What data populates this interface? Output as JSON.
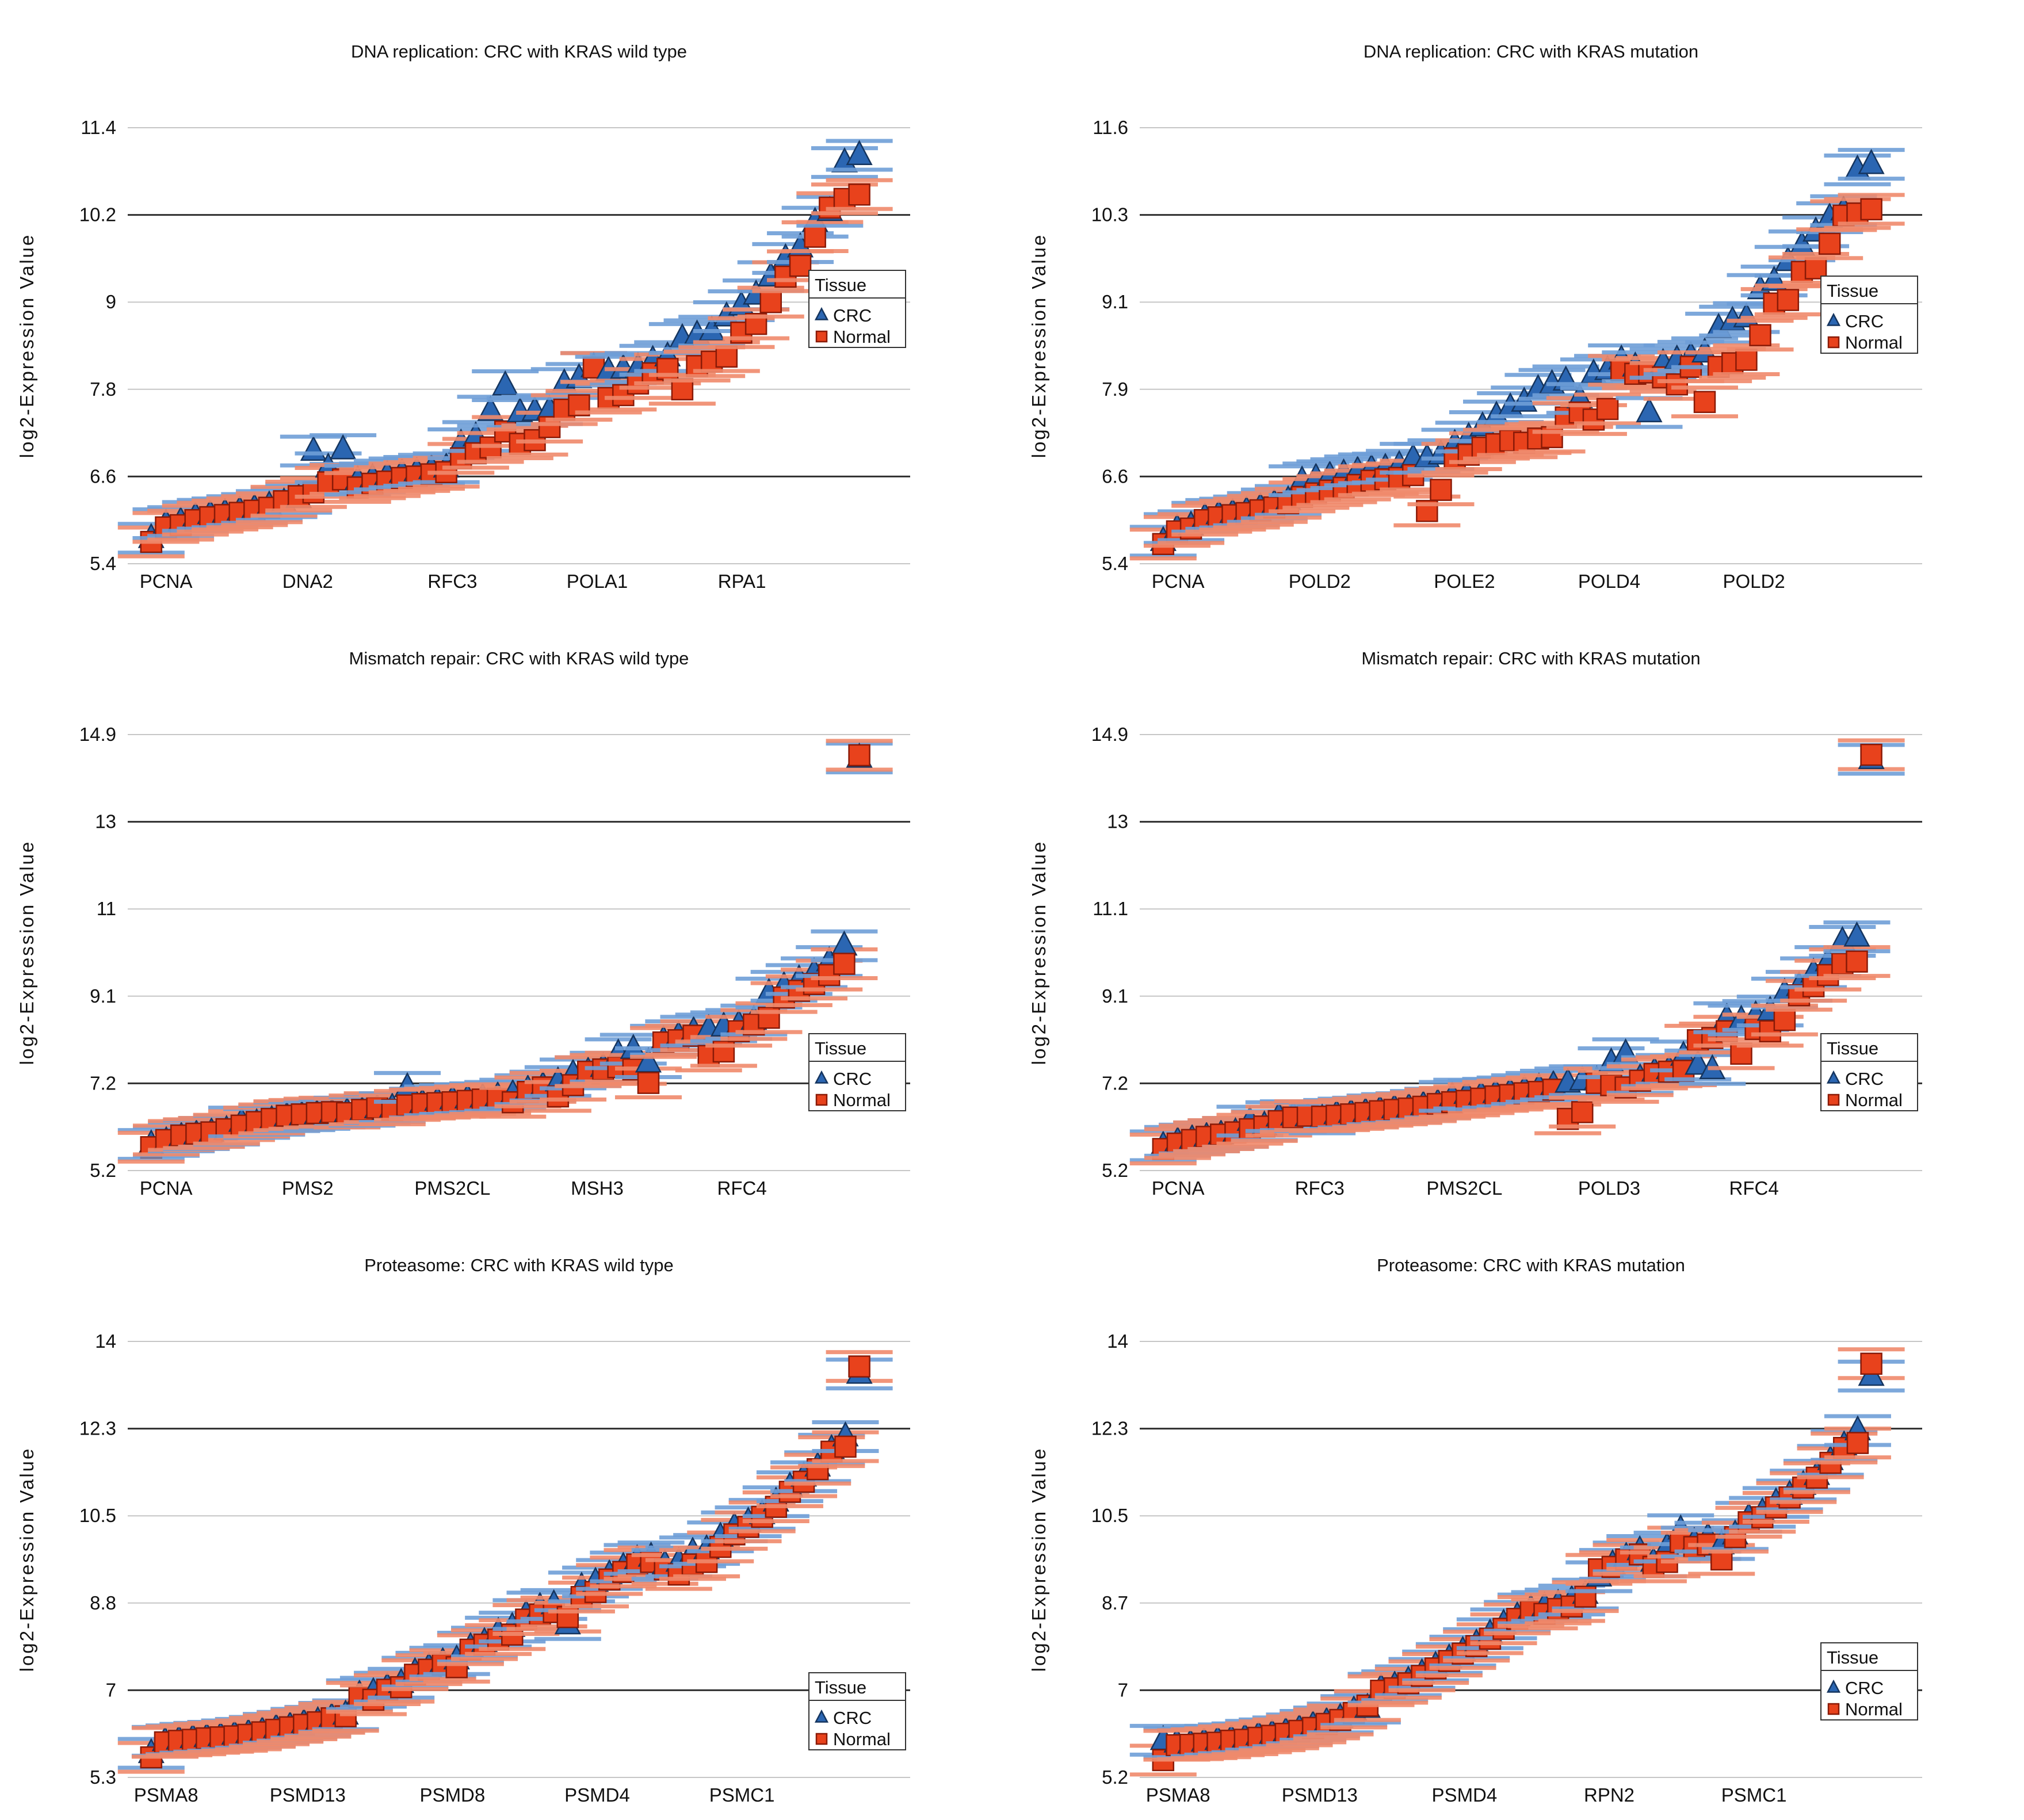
{
  "figure": {
    "description": "Six scatter panels comparing log2 expression of genes between CRC and Normal tissue",
    "legend": {
      "title": "Tissue",
      "entries": [
        {
          "label": "CRC",
          "marker": "triangle"
        },
        {
          "label": "Normal",
          "marker": "square"
        }
      ]
    }
  },
  "colors": {
    "crc_fill": "#2B66B2",
    "crc_edge": "#15355F",
    "crc_errbar": "#6F9FD8",
    "normal_fill": "#E8421C",
    "normal_edge": "#8A1A07",
    "normal_errbar": "#F08A6C",
    "grid_light": "#C6C6C6",
    "grid_dark": "#2F2F2F",
    "text": "#111111",
    "legend_border": "#333333",
    "background": "#FFFFFF"
  },
  "chart_data": [
    {
      "type": "scatter",
      "title": "DNA replication: CRC with KRAS wild type",
      "ylabel": "log2-Expression Value",
      "ytick_labels": [
        "11.4",
        "10.2",
        "9",
        "7.8",
        "6.6",
        "5.4"
      ],
      "dark_tick_indices": [
        1,
        4
      ],
      "ylim": [
        5.4,
        11.4
      ],
      "xlabels": [
        "PCNA",
        "DNA2",
        "RFC3",
        "POLA1",
        "RPA1"
      ],
      "series": [
        {
          "name": "CRC",
          "marker": "triangle",
          "values": [
            5.75,
            5.95,
            5.98,
            6.05,
            6.08,
            6.1,
            6.13,
            6.16,
            6.2,
            6.24,
            6.3,
            6.95,
            6.72,
            6.97,
            6.55,
            6.58,
            6.62,
            6.65,
            6.67,
            6.7,
            6.72,
            7.05,
            7.15,
            7.5,
            7.85,
            7.48,
            7.5,
            7.52,
            7.88,
            7.95,
            8.1,
            8.05,
            8.08,
            8.1,
            8.2,
            8.25,
            8.5,
            8.55,
            8.6,
            8.8,
            8.95,
            9.1,
            9.35,
            9.6,
            9.75,
            10.1,
            10.25,
            10.92,
            11.02
          ]
        },
        {
          "name": "Normal",
          "marker": "square",
          "values": [
            5.7,
            5.9,
            5.93,
            6.0,
            6.04,
            6.07,
            6.1,
            6.13,
            6.17,
            6.26,
            6.33,
            6.38,
            6.52,
            6.56,
            6.45,
            6.5,
            6.53,
            6.58,
            6.6,
            6.63,
            6.66,
            6.85,
            6.92,
            7.0,
            7.22,
            7.05,
            7.1,
            7.28,
            7.52,
            7.58,
            8.1,
            7.68,
            7.72,
            7.88,
            8.02,
            8.08,
            7.8,
            8.12,
            8.18,
            8.25,
            8.58,
            8.7,
            9.0,
            9.35,
            9.5,
            9.9,
            10.3,
            10.42,
            10.48
          ]
        }
      ]
    },
    {
      "type": "scatter",
      "title": "DNA replication: CRC with KRAS mutation",
      "ylabel": "log2-Expression Value",
      "ytick_labels": [
        "11.6",
        "10.3",
        "9.1",
        "7.9",
        "6.6",
        "5.4"
      ],
      "dark_tick_indices": [
        1,
        4
      ],
      "ylim": [
        5.4,
        11.6
      ],
      "xlabels": [
        "PCNA",
        "POLD2",
        "POLE2",
        "POLD4",
        "POLD2"
      ],
      "series": [
        {
          "name": "CRC",
          "marker": "triangle",
          "values": [
            5.72,
            5.9,
            5.94,
            6.06,
            6.1,
            6.12,
            6.15,
            6.2,
            6.25,
            6.3,
            6.58,
            6.62,
            6.65,
            6.68,
            6.72,
            6.75,
            6.76,
            6.8,
            6.9,
            6.9,
            6.95,
            7.1,
            7.2,
            7.35,
            7.5,
            7.62,
            7.7,
            7.88,
            7.95,
            8.0,
            7.75,
            8.1,
            8.15,
            8.3,
            8.2,
            7.55,
            8.25,
            8.3,
            8.35,
            8.4,
            8.75,
            8.85,
            8.9,
            9.3,
            9.42,
            9.7,
            9.92,
            10.12,
            10.32,
            10.42,
            11.0,
            11.08
          ]
        },
        {
          "name": "Normal",
          "marker": "square",
          "values": [
            5.68,
            5.86,
            5.9,
            6.02,
            6.06,
            6.09,
            6.12,
            6.16,
            6.2,
            6.26,
            6.35,
            6.4,
            6.44,
            6.48,
            6.52,
            6.58,
            6.6,
            6.62,
            6.66,
            6.15,
            6.45,
            6.9,
            6.95,
            7.05,
            7.1,
            7.15,
            7.12,
            7.18,
            7.2,
            7.48,
            7.55,
            7.45,
            7.6,
            8.15,
            8.1,
            8.12,
            8.05,
            7.95,
            8.2,
            7.7,
            8.2,
            8.25,
            8.3,
            8.65,
            9.1,
            9.15,
            9.55,
            9.6,
            9.95,
            10.35,
            10.38,
            10.44
          ]
        }
      ]
    },
    {
      "type": "scatter",
      "title": "Mismatch repair: CRC with KRAS wild type",
      "ylabel": "log2-Expression Value",
      "ytick_labels": [
        "14.9",
        "13",
        "11",
        "9.1",
        "7.2",
        "5.2"
      ],
      "dark_tick_indices": [
        1,
        4
      ],
      "ylim": [
        5.2,
        14.9
      ],
      "xlabels": [
        "PCNA",
        "PMS2",
        "PMS2CL",
        "MSH3",
        "RFC4"
      ],
      "series": [
        {
          "name": "CRC",
          "marker": "triangle",
          "values": [
            5.78,
            5.85,
            5.95,
            6.0,
            6.05,
            6.1,
            6.28,
            6.25,
            6.32,
            6.4,
            6.42,
            6.45,
            6.48,
            6.5,
            6.52,
            6.58,
            6.6,
            7.05,
            6.7,
            6.75,
            6.78,
            6.8,
            6.82,
            6.85,
            6.9,
            7.0,
            7.08,
            7.18,
            7.35,
            7.4,
            7.5,
            7.8,
            7.9,
            7.6,
            8.1,
            8.2,
            8.3,
            8.35,
            8.4,
            8.45,
            8.55,
            9.15,
            9.3,
            9.45,
            9.6,
            9.85,
            10.2,
            14.38
          ]
        },
        {
          "name": "Normal",
          "marker": "square",
          "values": [
            5.72,
            5.88,
            5.98,
            6.02,
            6.05,
            6.12,
            6.2,
            6.28,
            6.35,
            6.42,
            6.45,
            6.48,
            6.5,
            6.48,
            6.55,
            6.6,
            6.55,
            6.65,
            6.68,
            6.7,
            6.72,
            6.75,
            6.78,
            6.8,
            6.72,
            6.95,
            7.05,
            6.85,
            7.1,
            7.4,
            7.45,
            7.5,
            7.45,
            7.15,
            8.05,
            8.1,
            8.2,
            7.75,
            7.85,
            8.3,
            8.45,
            8.6,
            9.05,
            9.2,
            9.35,
            9.55,
            9.8,
            14.44
          ]
        }
      ]
    },
    {
      "type": "scatter",
      "title": "Mismatch repair: CRC with KRAS mutation",
      "ylabel": "log2-Expression Value",
      "ytick_labels": [
        "14.9",
        "13",
        "11.1",
        "9.1",
        "7.2",
        "5.2"
      ],
      "dark_tick_indices": [
        1,
        4
      ],
      "ylim": [
        5.2,
        14.9
      ],
      "xlabels": [
        "PCNA",
        "RFC3",
        "PMS2CL",
        "POLD3",
        "RFC4"
      ],
      "series": [
        {
          "name": "CRC",
          "marker": "triangle",
          "values": [
            5.75,
            5.85,
            5.9,
            5.95,
            6.0,
            6.05,
            6.3,
            6.2,
            6.4,
            6.42,
            6.4,
            6.35,
            6.45,
            6.48,
            6.5,
            6.55,
            6.58,
            6.6,
            6.65,
            6.7,
            6.85,
            6.9,
            6.88,
            6.92,
            6.95,
            7.0,
            7.05,
            7.1,
            7.15,
            7.2,
            7.2,
            7.6,
            7.8,
            7.25,
            7.4,
            7.45,
            7.75,
            7.55,
            7.45,
            8.6,
            8.55,
            8.65,
            8.75,
            9.15,
            9.3,
            9.6,
            9.85,
            10.3,
            10.4,
            14.35
          ]
        },
        {
          "name": "Normal",
          "marker": "square",
          "values": [
            5.68,
            5.8,
            5.88,
            5.95,
            6.0,
            6.05,
            6.12,
            6.18,
            6.3,
            6.38,
            6.42,
            6.4,
            6.42,
            6.45,
            6.48,
            6.52,
            6.55,
            6.58,
            6.62,
            6.68,
            6.72,
            6.75,
            6.8,
            6.85,
            6.88,
            6.92,
            6.95,
            7.0,
            6.35,
            6.5,
            7.15,
            7.1,
            7.05,
            7.2,
            7.35,
            7.4,
            7.42,
            8.1,
            8.15,
            8.3,
            7.8,
            8.35,
            8.3,
            8.55,
            9.1,
            9.3,
            9.55,
            9.8,
            9.85,
            14.45
          ]
        }
      ]
    },
    {
      "type": "scatter",
      "title": "Proteasome: CRC with KRAS wild type",
      "ylabel": "log2-Expression Value",
      "ytick_labels": [
        "14",
        "12.3",
        "10.5",
        "8.8",
        "7",
        "5.3"
      ],
      "dark_tick_indices": [
        1,
        4
      ],
      "ylim": [
        5.3,
        14
      ],
      "xlabels": [
        "PSMA8",
        "PSMD13",
        "PSMD8",
        "PSMD4",
        "PSMC1"
      ],
      "series": [
        {
          "name": "CRC",
          "marker": "triangle",
          "values": [
            5.78,
            6.02,
            6.05,
            6.08,
            6.1,
            6.12,
            6.15,
            6.18,
            6.22,
            6.28,
            6.32,
            6.38,
            6.42,
            6.5,
            6.55,
            6.95,
            7.0,
            7.1,
            7.18,
            7.4,
            7.5,
            7.6,
            7.65,
            7.9,
            8.0,
            8.2,
            8.3,
            8.55,
            8.7,
            8.75,
            8.35,
            9.1,
            9.2,
            9.35,
            9.5,
            9.65,
            9.7,
            9.55,
            9.6,
            9.8,
            9.85,
            10.1,
            10.3,
            10.4,
            10.55,
            10.8,
            11.1,
            11.3,
            11.5,
            11.85,
            12.1,
            13.35
          ]
        },
        {
          "name": "Normal",
          "marker": "square",
          "values": [
            5.7,
            6.0,
            6.03,
            6.05,
            6.08,
            6.1,
            6.12,
            6.15,
            6.2,
            6.25,
            6.3,
            6.35,
            6.4,
            6.48,
            6.52,
            6.9,
            6.85,
            7.05,
            7.1,
            7.35,
            7.45,
            7.55,
            7.5,
            7.85,
            7.95,
            8.05,
            8.15,
            8.45,
            8.55,
            8.6,
            8.5,
            8.9,
            9.0,
            9.25,
            9.4,
            9.55,
            9.6,
            9.45,
            9.35,
            9.55,
            9.6,
            9.9,
            10.15,
            10.3,
            10.5,
            10.7,
            11.0,
            11.2,
            11.45,
            11.8,
            11.9,
            13.5
          ]
        }
      ]
    },
    {
      "type": "scatter",
      "title": "Proteasome: CRC with KRAS mutation",
      "ylabel": "log2-Expression Value",
      "ytick_labels": [
        "14",
        "12.3",
        "10.5",
        "8.7",
        "7",
        "5.2"
      ],
      "dark_tick_indices": [
        1,
        4
      ],
      "ylim": [
        5.2,
        14
      ],
      "xlabels": [
        "PSMA8",
        "PSMD13",
        "PSMD4",
        "RPN2",
        "PSMC1"
      ],
      "series": [
        {
          "name": "CRC",
          "marker": "triangle",
          "values": [
            5.95,
            5.9,
            5.88,
            5.92,
            5.95,
            5.98,
            6.0,
            6.05,
            6.08,
            6.12,
            6.18,
            6.25,
            6.32,
            6.4,
            6.55,
            6.6,
            7.0,
            7.05,
            7.15,
            7.3,
            7.45,
            7.6,
            7.75,
            7.9,
            8.1,
            8.3,
            8.45,
            8.6,
            8.65,
            8.7,
            8.78,
            8.9,
            9.25,
            9.5,
            9.65,
            9.78,
            9.55,
            9.85,
            10.2,
            9.95,
            10.05,
            9.9,
            10.1,
            10.45,
            10.55,
            10.75,
            10.9,
            11.1,
            11.3,
            11.6,
            11.9,
            12.2,
            13.3
          ]
        },
        {
          "name": "Normal",
          "marker": "square",
          "values": [
            5.55,
            5.85,
            5.86,
            5.88,
            5.9,
            5.94,
            5.96,
            6.0,
            6.04,
            6.08,
            6.14,
            6.2,
            6.28,
            6.36,
            6.5,
            6.65,
            6.95,
            7.0,
            7.1,
            7.25,
            7.4,
            7.55,
            7.7,
            7.85,
            8.0,
            8.2,
            8.4,
            8.55,
            8.5,
            8.6,
            8.65,
            8.85,
            9.4,
            9.45,
            9.6,
            9.7,
            9.45,
            9.55,
            9.95,
            9.85,
            9.9,
            9.6,
            10.05,
            10.35,
            10.45,
            10.65,
            10.85,
            11.05,
            11.25,
            11.55,
            11.85,
            11.95,
            13.55
          ]
        }
      ]
    }
  ]
}
